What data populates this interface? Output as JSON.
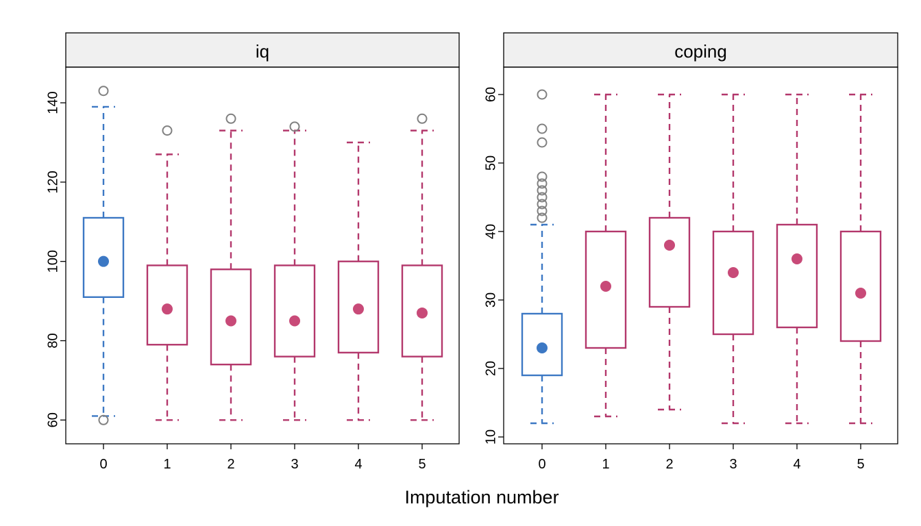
{
  "xlabel": "Imputation number",
  "colors": {
    "observed": "#3c78c4",
    "imputed": "#b3376b",
    "imputed_dot": "#c84a78",
    "outlier": "#808080",
    "strip_bg": "#f0f0f0"
  },
  "chart_data": [
    {
      "type": "box",
      "title": "iq",
      "categories": [
        "0",
        "1",
        "2",
        "3",
        "4",
        "5"
      ],
      "ylim": [
        54,
        149
      ],
      "yticks": [
        60,
        80,
        100,
        120,
        140
      ],
      "boxes": [
        {
          "group": "observed",
          "low": 61,
          "q1": 91,
          "median": 100,
          "q3": 111,
          "high": 139,
          "outliers": [
            60,
            143
          ]
        },
        {
          "group": "imputed",
          "low": 60,
          "q1": 79,
          "median": 88,
          "q3": 99,
          "high": 127,
          "outliers": [
            133
          ]
        },
        {
          "group": "imputed",
          "low": 60,
          "q1": 74,
          "median": 85,
          "q3": 98,
          "high": 133,
          "outliers": [
            136
          ]
        },
        {
          "group": "imputed",
          "low": 60,
          "q1": 76,
          "median": 85,
          "q3": 99,
          "high": 133,
          "outliers": [
            134
          ]
        },
        {
          "group": "imputed",
          "low": 60,
          "q1": 77,
          "median": 88,
          "q3": 100,
          "high": 130,
          "outliers": []
        },
        {
          "group": "imputed",
          "low": 60,
          "q1": 76,
          "median": 87,
          "q3": 99,
          "high": 133,
          "outliers": [
            136
          ]
        }
      ]
    },
    {
      "type": "box",
      "title": "coping",
      "categories": [
        "0",
        "1",
        "2",
        "3",
        "4",
        "5"
      ],
      "ylim": [
        9,
        64
      ],
      "yticks": [
        10,
        20,
        30,
        40,
        50,
        60
      ],
      "boxes": [
        {
          "group": "observed",
          "low": 12,
          "q1": 19,
          "median": 23,
          "q3": 28,
          "high": 41,
          "outliers": [
            42,
            43,
            44,
            45,
            46,
            47,
            48,
            53,
            55,
            60
          ]
        },
        {
          "group": "imputed",
          "low": 13,
          "q1": 23,
          "median": 32,
          "q3": 40,
          "high": 60,
          "outliers": []
        },
        {
          "group": "imputed",
          "low": 14,
          "q1": 29,
          "median": 38,
          "q3": 42,
          "high": 60,
          "outliers": []
        },
        {
          "group": "imputed",
          "low": 12,
          "q1": 25,
          "median": 34,
          "q3": 40,
          "high": 60,
          "outliers": []
        },
        {
          "group": "imputed",
          "low": 12,
          "q1": 26,
          "median": 36,
          "q3": 41,
          "high": 60,
          "outliers": []
        },
        {
          "group": "imputed",
          "low": 12,
          "q1": 24,
          "median": 31,
          "q3": 40,
          "high": 60,
          "outliers": []
        }
      ]
    }
  ]
}
